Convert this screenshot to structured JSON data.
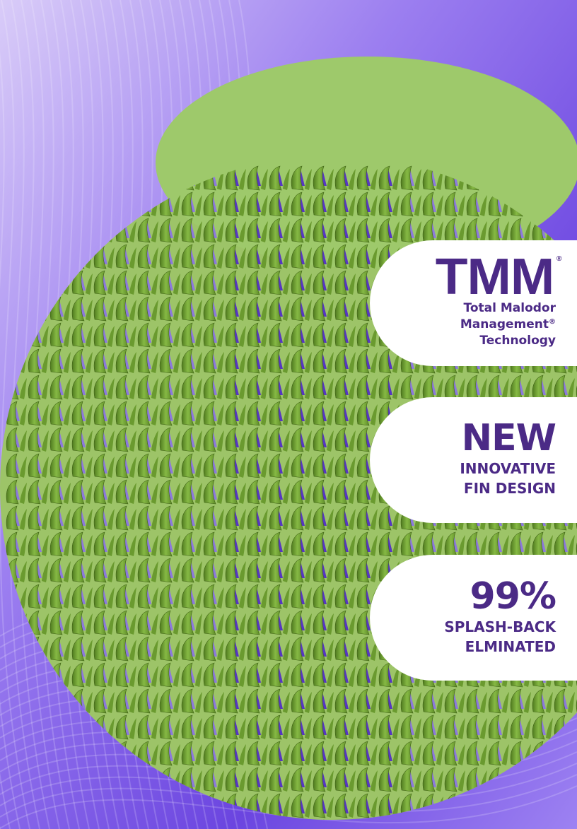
{
  "background": {
    "purple_light": "#cbbaf5",
    "purple_mid": "#7a5ae6",
    "purple_deep": "#3b1ca8",
    "green_disc": "#9dc468",
    "fin_green": "#7dae3c",
    "fin_dark": "#486d1b"
  },
  "badges": {
    "tmm": {
      "logo": "TMM",
      "registered": "®",
      "line1": "Total Malodor",
      "line2": "Management",
      "line2_mark": "®",
      "line3": "Technology"
    },
    "fin": {
      "headline": "NEW",
      "line1": "INNOVATIVE",
      "line2": "FIN DESIGN"
    },
    "splash": {
      "headline": "99%",
      "line1": "SPLASH-BACK",
      "line2": "ELMINATED"
    }
  },
  "text_color": "#4b2a86"
}
